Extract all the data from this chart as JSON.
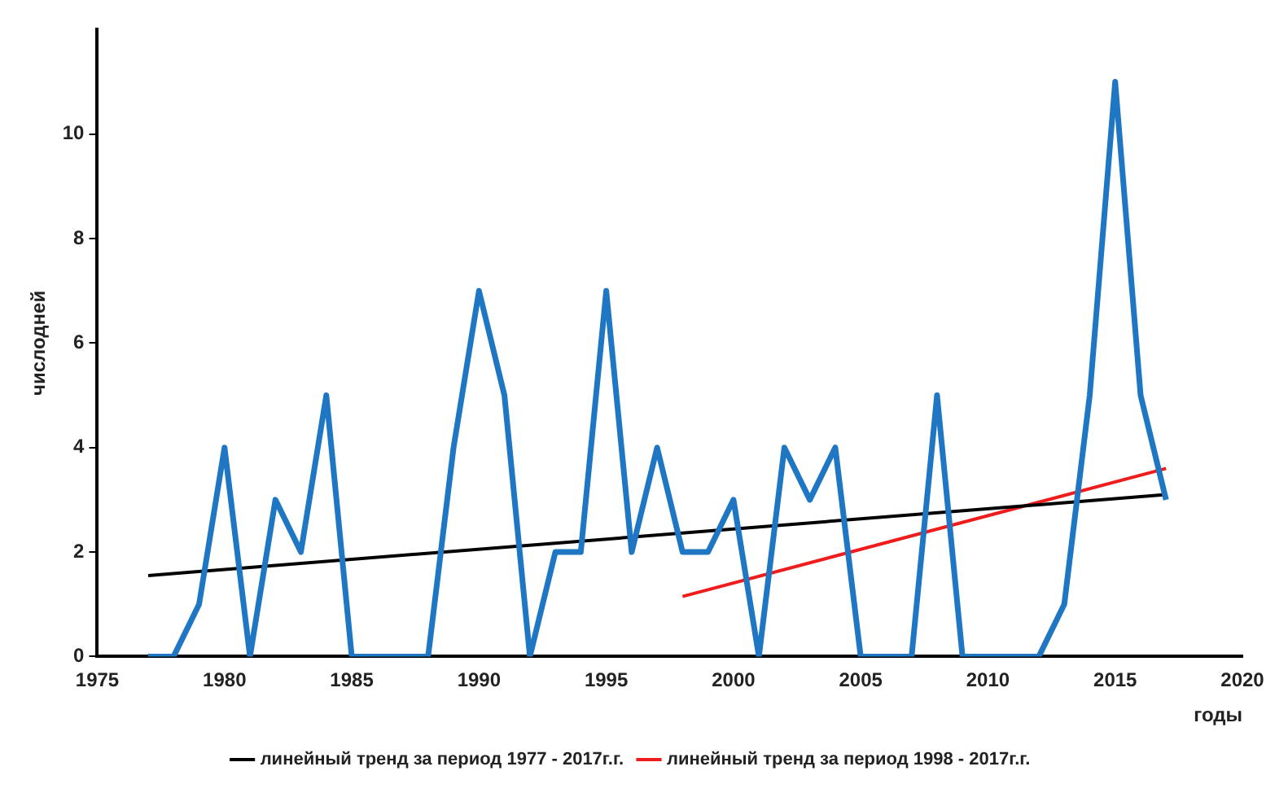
{
  "chart_data": {
    "type": "line",
    "xlabel": "годы",
    "ylabel": "числодней",
    "xlim": [
      1975,
      2020
    ],
    "xticks": [
      1975,
      1980,
      1985,
      1990,
      1995,
      2000,
      2005,
      2010,
      2015,
      2020
    ],
    "ylim": [
      0,
      12
    ],
    "yticks": [
      0,
      2,
      4,
      6,
      8,
      10
    ],
    "grid": false,
    "legend": "bottom",
    "marker": "none",
    "series": [
      {
        "color": "#1f77c4",
        "x": [
          1977,
          1978,
          1979,
          1980,
          1981,
          1982,
          1983,
          1984,
          1985,
          1986,
          1987,
          1988,
          1989,
          1990,
          1991,
          1992,
          1993,
          1994,
          1995,
          1996,
          1997,
          1998,
          1999,
          2000,
          2001,
          2002,
          2003,
          2004,
          2005,
          2006,
          2007,
          2008,
          2009,
          2010,
          2011,
          2012,
          2013,
          2014,
          2015,
          2016,
          2017
        ],
        "values": [
          0,
          0,
          1,
          4,
          0,
          3,
          2,
          5,
          0,
          0,
          0,
          0,
          4,
          7,
          5,
          0,
          2,
          2,
          7,
          2,
          4,
          2,
          2,
          3,
          0,
          4,
          3,
          4,
          0,
          0,
          0,
          5,
          0,
          0,
          0,
          0,
          1,
          5,
          11,
          5,
          3
        ]
      },
      {
        "name": "линейный тренд за период 1977 - 2017г.г.",
        "color": "#000000",
        "x": [
          1977,
          2017
        ],
        "values": [
          1.55,
          3.1
        ]
      },
      {
        "name": "линейный тренд за период 1998 - 2017г.г.",
        "color": "#ee1c1c",
        "x": [
          1998,
          2017
        ],
        "values": [
          1.15,
          3.6
        ]
      }
    ]
  }
}
